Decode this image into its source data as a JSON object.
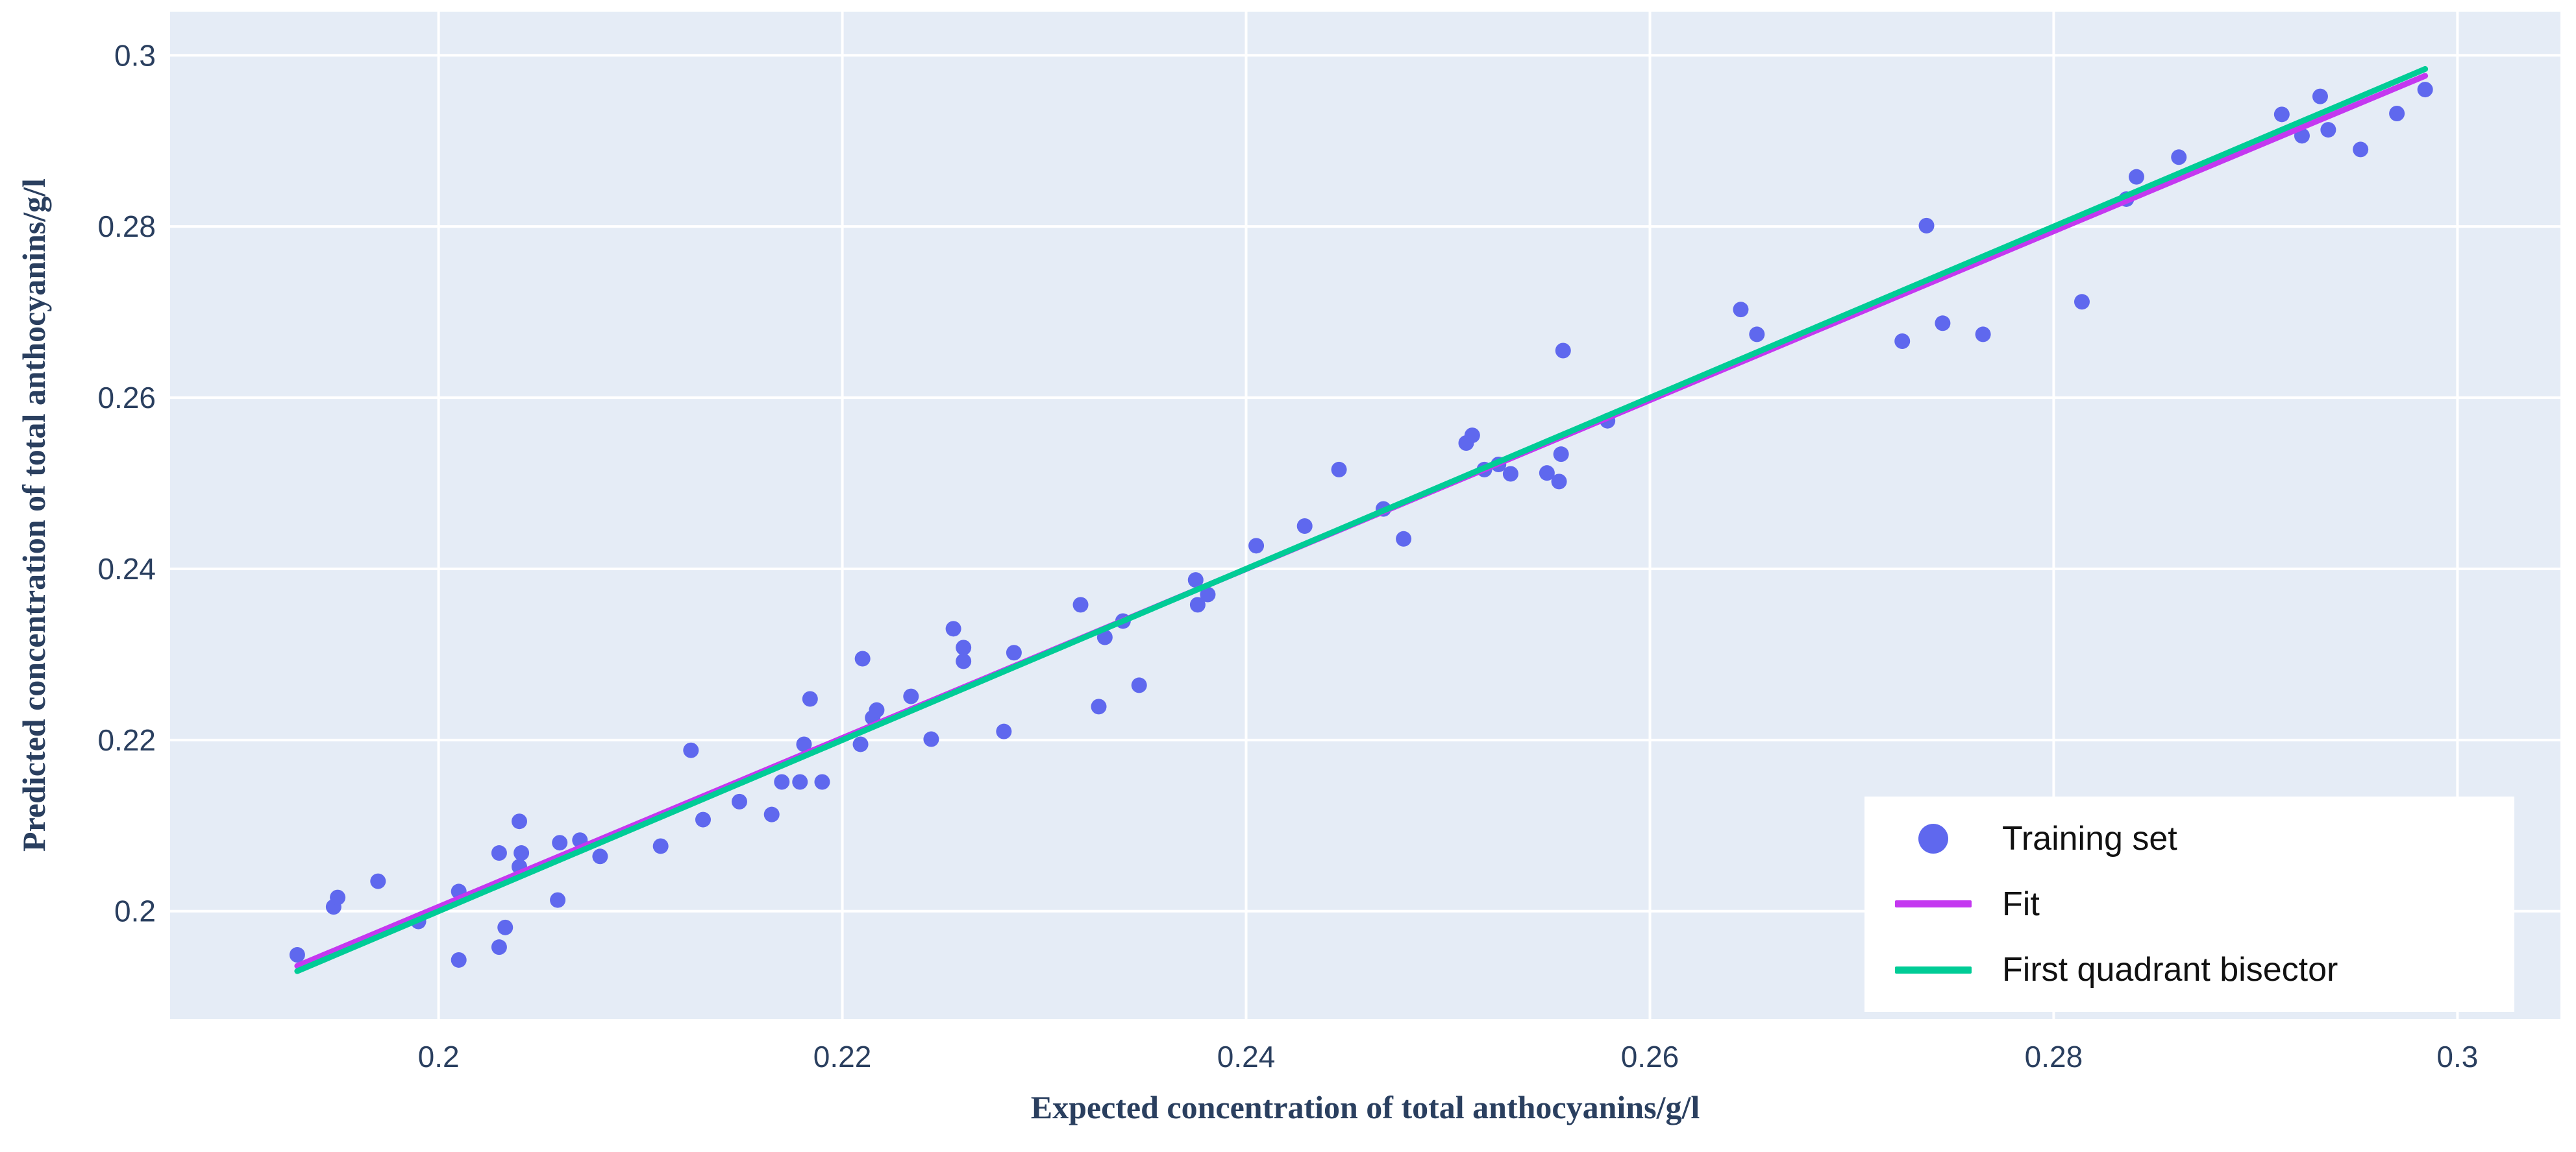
{
  "chart_data": {
    "type": "scatter",
    "title": "",
    "xlabel": "Expected concentration of total anthocyanins/g/l",
    "ylabel": "Predicted concentration of total anthocyanins/g/l",
    "xlim": [
      0.1867,
      0.3051
    ],
    "ylim": [
      0.1874,
      0.3051
    ],
    "x_ticks": [
      0.2,
      0.22,
      0.24,
      0.26,
      0.28,
      0.3
    ],
    "y_ticks": [
      0.2,
      0.22,
      0.24,
      0.26,
      0.28,
      0.3
    ],
    "grid": true,
    "legend_position": "bottom-right",
    "series": [
      {
        "name": "Training set",
        "kind": "points",
        "points": [
          [
            0.193,
            0.1949
          ],
          [
            0.1948,
            0.2005
          ],
          [
            0.195,
            0.2016
          ],
          [
            0.197,
            0.2035
          ],
          [
            0.199,
            0.1988
          ],
          [
            0.201,
            0.2023
          ],
          [
            0.201,
            0.1943
          ],
          [
            0.2033,
            0.1981
          ],
          [
            0.203,
            0.1958
          ],
          [
            0.204,
            0.2105
          ],
          [
            0.203,
            0.2068
          ],
          [
            0.2041,
            0.2068
          ],
          [
            0.204,
            0.2052
          ],
          [
            0.2059,
            0.2013
          ],
          [
            0.206,
            0.208
          ],
          [
            0.207,
            0.2083
          ],
          [
            0.208,
            0.2064
          ],
          [
            0.211,
            0.2076
          ],
          [
            0.2131,
            0.2107
          ],
          [
            0.2149,
            0.2128
          ],
          [
            0.2125,
            0.2188
          ],
          [
            0.2165,
            0.2113
          ],
          [
            0.217,
            0.2151
          ],
          [
            0.2179,
            0.2151
          ],
          [
            0.219,
            0.2151
          ],
          [
            0.2181,
            0.2195
          ],
          [
            0.2184,
            0.2248
          ],
          [
            0.2209,
            0.2195
          ],
          [
            0.2215,
            0.2226
          ],
          [
            0.2217,
            0.2235
          ],
          [
            0.2244,
            0.2201
          ],
          [
            0.228,
            0.221
          ],
          [
            0.2234,
            0.2251
          ],
          [
            0.221,
            0.2295
          ],
          [
            0.2255,
            0.233
          ],
          [
            0.226,
            0.2308
          ],
          [
            0.226,
            0.2292
          ],
          [
            0.2285,
            0.2302
          ],
          [
            0.2318,
            0.2358
          ],
          [
            0.233,
            0.232
          ],
          [
            0.2327,
            0.2239
          ],
          [
            0.2347,
            0.2264
          ],
          [
            0.2339,
            0.2339
          ],
          [
            0.2375,
            0.2387
          ],
          [
            0.2381,
            0.237
          ],
          [
            0.2376,
            0.2358
          ],
          [
            0.2405,
            0.2427
          ],
          [
            0.2429,
            0.245
          ],
          [
            0.2446,
            0.2516
          ],
          [
            0.2468,
            0.247
          ],
          [
            0.2478,
            0.2435
          ],
          [
            0.2509,
            0.2547
          ],
          [
            0.2512,
            0.2556
          ],
          [
            0.2518,
            0.2516
          ],
          [
            0.2525,
            0.2522
          ],
          [
            0.2531,
            0.2511
          ],
          [
            0.2549,
            0.2512
          ],
          [
            0.2555,
            0.2502
          ],
          [
            0.2556,
            0.2534
          ],
          [
            0.2557,
            0.2655
          ],
          [
            0.2579,
            0.2573
          ],
          [
            0.2645,
            0.2703
          ],
          [
            0.2653,
            0.2674
          ],
          [
            0.2725,
            0.2666
          ],
          [
            0.2737,
            0.2801
          ],
          [
            0.2745,
            0.2687
          ],
          [
            0.2765,
            0.2674
          ],
          [
            0.2814,
            0.2712
          ],
          [
            0.2836,
            0.2832
          ],
          [
            0.2841,
            0.2858
          ],
          [
            0.2862,
            0.2881
          ],
          [
            0.2913,
            0.2931
          ],
          [
            0.2923,
            0.2906
          ],
          [
            0.2932,
            0.2952
          ],
          [
            0.2936,
            0.2913
          ],
          [
            0.2952,
            0.289
          ],
          [
            0.297,
            0.2932
          ],
          [
            0.2984,
            0.296
          ]
        ]
      },
      {
        "name": "Fit",
        "kind": "line",
        "x": [
          0.193,
          0.2984
        ],
        "y": [
          0.1936,
          0.2976
        ]
      },
      {
        "name": "First quadrant bisector",
        "kind": "line",
        "x": [
          0.193,
          0.2984
        ],
        "y": [
          0.193,
          0.2984
        ]
      }
    ]
  },
  "legend": {
    "items": [
      {
        "label": "Training set"
      },
      {
        "label": "Fit"
      },
      {
        "label": "First quadrant bisector"
      }
    ]
  },
  "colors": {
    "plot_background": "#e5ecf6",
    "gridline": "#ffffff",
    "marker": "#5f68ee",
    "fit_line": "#c438f0",
    "bisector_line": "#00cc96",
    "tick_text": "#2a3f5f",
    "axis_title_text": "#2a3f5f",
    "legend_background": "#ffffff",
    "legend_text": "#111111"
  }
}
